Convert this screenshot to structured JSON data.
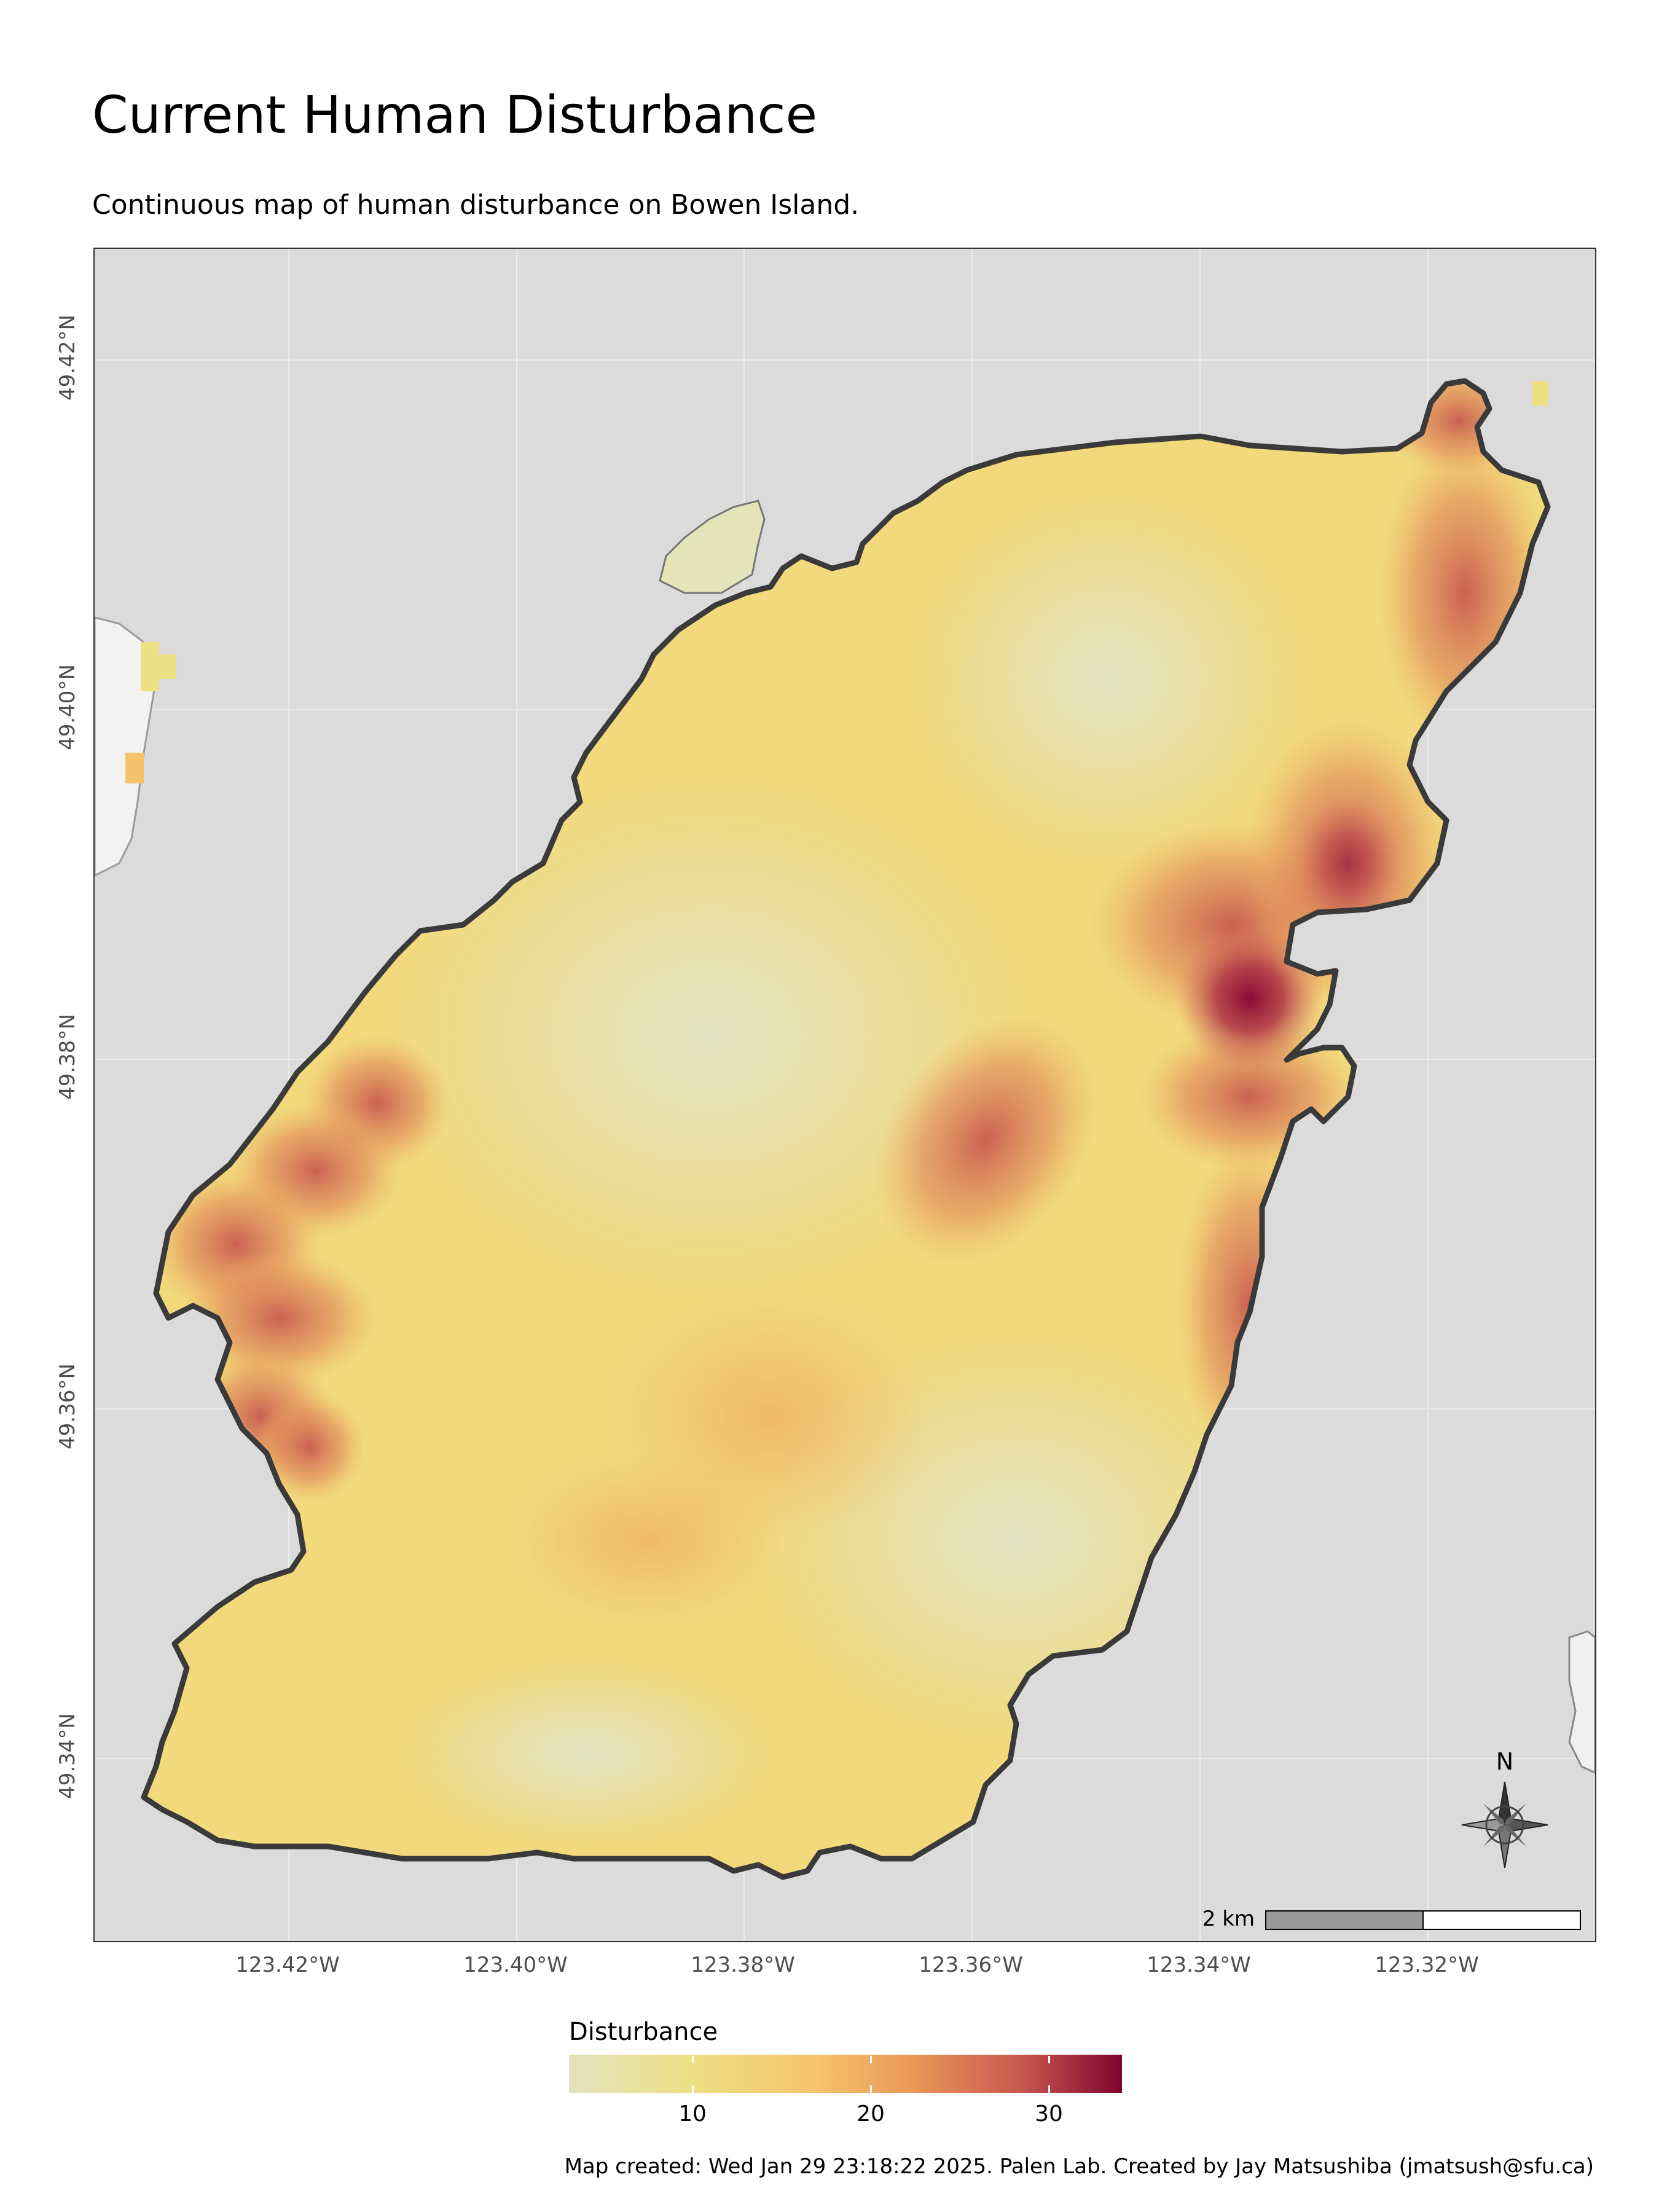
{
  "title": "Current Human Disturbance",
  "subtitle": "Continuous map of human disturbance on Bowen Island.",
  "axes": {
    "y_ticks": [
      "49.42°N",
      "49.40°N",
      "49.38°N",
      "49.36°N",
      "49.34°N"
    ],
    "x_ticks": [
      "123.42°W",
      "123.40°W",
      "123.38°W",
      "123.36°W",
      "123.34°W",
      "123.32°W"
    ]
  },
  "north_arrow_label": "N",
  "scale_bar_label": "2 km",
  "legend": {
    "title": "Disturbance",
    "ticks": [
      "10",
      "20",
      "30"
    ],
    "colors": [
      "#e2e3bd",
      "#eddf84",
      "#f6c36a",
      "#ea9858",
      "#c8564f",
      "#80042e"
    ]
  },
  "caption": "Map created: Wed Jan 29 23:18:22 2025. Palen Lab. Created by Jay Matsushiba (jmatsush@sfu.ca)",
  "colors": {
    "water": "#dbdbdb",
    "outline": "#3a3a3a",
    "low": "#e3e4c2",
    "mid": "#f3d47a",
    "high": "#d46a55",
    "max": "#8c0a35"
  }
}
